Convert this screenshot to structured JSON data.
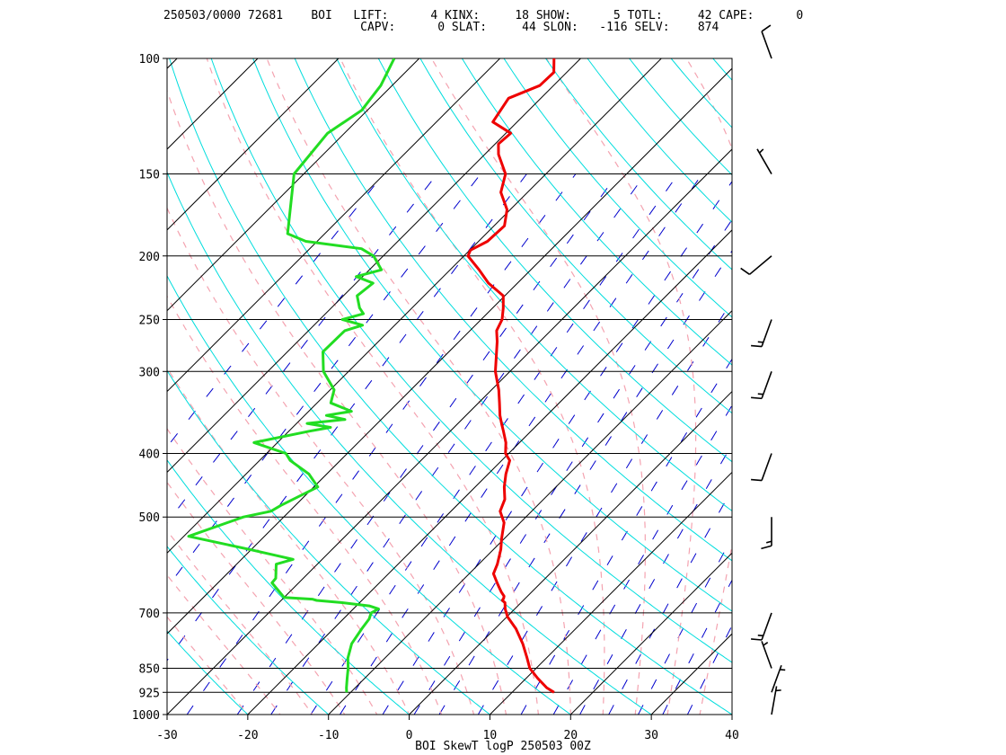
{
  "header": {
    "line1": "250503/0000 72681    BOI   LIFT:      4 KINX:     18 SHOW:      5 TOTL:     42 CAPE:      0",
    "line2": "                            CAPV:      0 SLAT:     44 SLON:   -116 SELV:    874"
  },
  "chart_data": {
    "type": "line",
    "title": "BOI SkewT logP 250503 00Z",
    "xlabel": "",
    "ylabel": "",
    "x_ticks": [
      -30,
      -20,
      -10,
      0,
      10,
      20,
      30,
      40
    ],
    "p_ticks": [
      100,
      150,
      200,
      250,
      300,
      400,
      500,
      700,
      850,
      925,
      1000
    ],
    "xlim": [
      -30,
      40
    ],
    "plim": [
      100,
      1000
    ],
    "y_scale": "log-pressure",
    "skew": true,
    "colors": {
      "temperature": "#ee0000",
      "dewpoint": "#22dd22",
      "isotherm": "#000000",
      "dry_adiabat": "#00dddd",
      "moist_adiabat": "#f4a3b0",
      "mixing_ratio": "#0000cc",
      "wind_barb": "#000000"
    },
    "series": [
      {
        "name": "",
        "key": "temperature",
        "p": [
          925,
          910,
          880,
          850,
          820,
          780,
          740,
          710,
          690,
          675,
          670,
          665,
          660,
          650,
          640,
          630,
          610,
          590,
          560,
          540,
          510,
          490,
          470,
          450,
          430,
          410,
          400,
          385,
          370,
          360,
          350,
          335,
          320,
          300,
          285,
          270,
          260,
          250,
          240,
          230,
          220,
          210,
          200,
          196,
          190,
          180,
          170,
          160,
          150,
          140,
          135,
          130,
          125,
          115,
          110,
          105,
          100
        ],
        "t": [
          15.2,
          13.7,
          11.4,
          9.2,
          7.6,
          5.3,
          2.6,
          0.1,
          -1.2,
          -2.0,
          -2.6,
          -2.7,
          -2.9,
          -3.8,
          -4.6,
          -5.4,
          -7.0,
          -7.7,
          -9.1,
          -10.3,
          -12.0,
          -13.9,
          -14.8,
          -16.4,
          -17.8,
          -19.0,
          -20.4,
          -21.7,
          -23.4,
          -24.6,
          -25.8,
          -27.4,
          -29.1,
          -31.8,
          -33.5,
          -35.3,
          -36.7,
          -37.4,
          -38.7,
          -40.2,
          -43.6,
          -46.4,
          -49.5,
          -49.9,
          -48.9,
          -48.7,
          -50.4,
          -53.3,
          -55.0,
          -58.3,
          -59.6,
          -59.4,
          -63.0,
          -64.0,
          -61.7,
          -61.6,
          -63.3
        ]
      },
      {
        "name": "",
        "key": "dewpoint",
        "p": [
          925,
          910,
          880,
          850,
          820,
          780,
          740,
          715,
          700,
          690,
          683,
          675,
          670,
          667,
          663,
          630,
          620,
          590,
          580,
          560,
          535,
          500,
          490,
          480,
          450,
          430,
          410,
          400,
          385,
          370,
          365,
          360,
          355,
          350,
          345,
          335,
          320,
          300,
          280,
          260,
          255,
          250,
          245,
          240,
          230,
          220,
          215,
          210,
          200,
          195,
          190,
          185,
          150,
          130,
          120,
          110,
          100
        ],
        "t": [
          -10.5,
          -11.1,
          -12.2,
          -13.3,
          -14.6,
          -15.9,
          -16.5,
          -16.8,
          -17.3,
          -16.9,
          -18.4,
          -22.3,
          -25.6,
          -26.3,
          -30.0,
          -33.3,
          -33.4,
          -35.1,
          -33.6,
          -40.3,
          -49.4,
          -45.0,
          -42.3,
          -41.8,
          -39.5,
          -42.2,
          -46.2,
          -47.6,
          -52.9,
          -47.5,
          -45.3,
          -48.7,
          -44.5,
          -47.3,
          -44.7,
          -48.3,
          -49.5,
          -53.1,
          -55.6,
          -55.5,
          -54.0,
          -57.2,
          -55.3,
          -56.5,
          -58.3,
          -57.9,
          -60.8,
          -58.5,
          -61.2,
          -63.6,
          -71.4,
          -74.6,
          -81.2,
          -82.1,
          -80.7,
          -81.4,
          -83.1
        ]
      }
    ],
    "wind_barbs": [
      {
        "p": 100,
        "dir": 340,
        "kt": 10
      },
      {
        "p": 150,
        "dir": 330,
        "kt": 5
      },
      {
        "p": 200,
        "dir": 230,
        "kt": 10
      },
      {
        "p": 250,
        "dir": 200,
        "kt": 15
      },
      {
        "p": 300,
        "dir": 200,
        "kt": 15
      },
      {
        "p": 400,
        "dir": 200,
        "kt": 10
      },
      {
        "p": 500,
        "dir": 180,
        "kt": 15
      },
      {
        "p": 700,
        "dir": 200,
        "kt": 15
      },
      {
        "p": 850,
        "dir": 340,
        "kt": 5
      },
      {
        "p": 925,
        "dir": 20,
        "kt": 5
      },
      {
        "p": 1000,
        "dir": 10,
        "kt": 5
      }
    ]
  }
}
